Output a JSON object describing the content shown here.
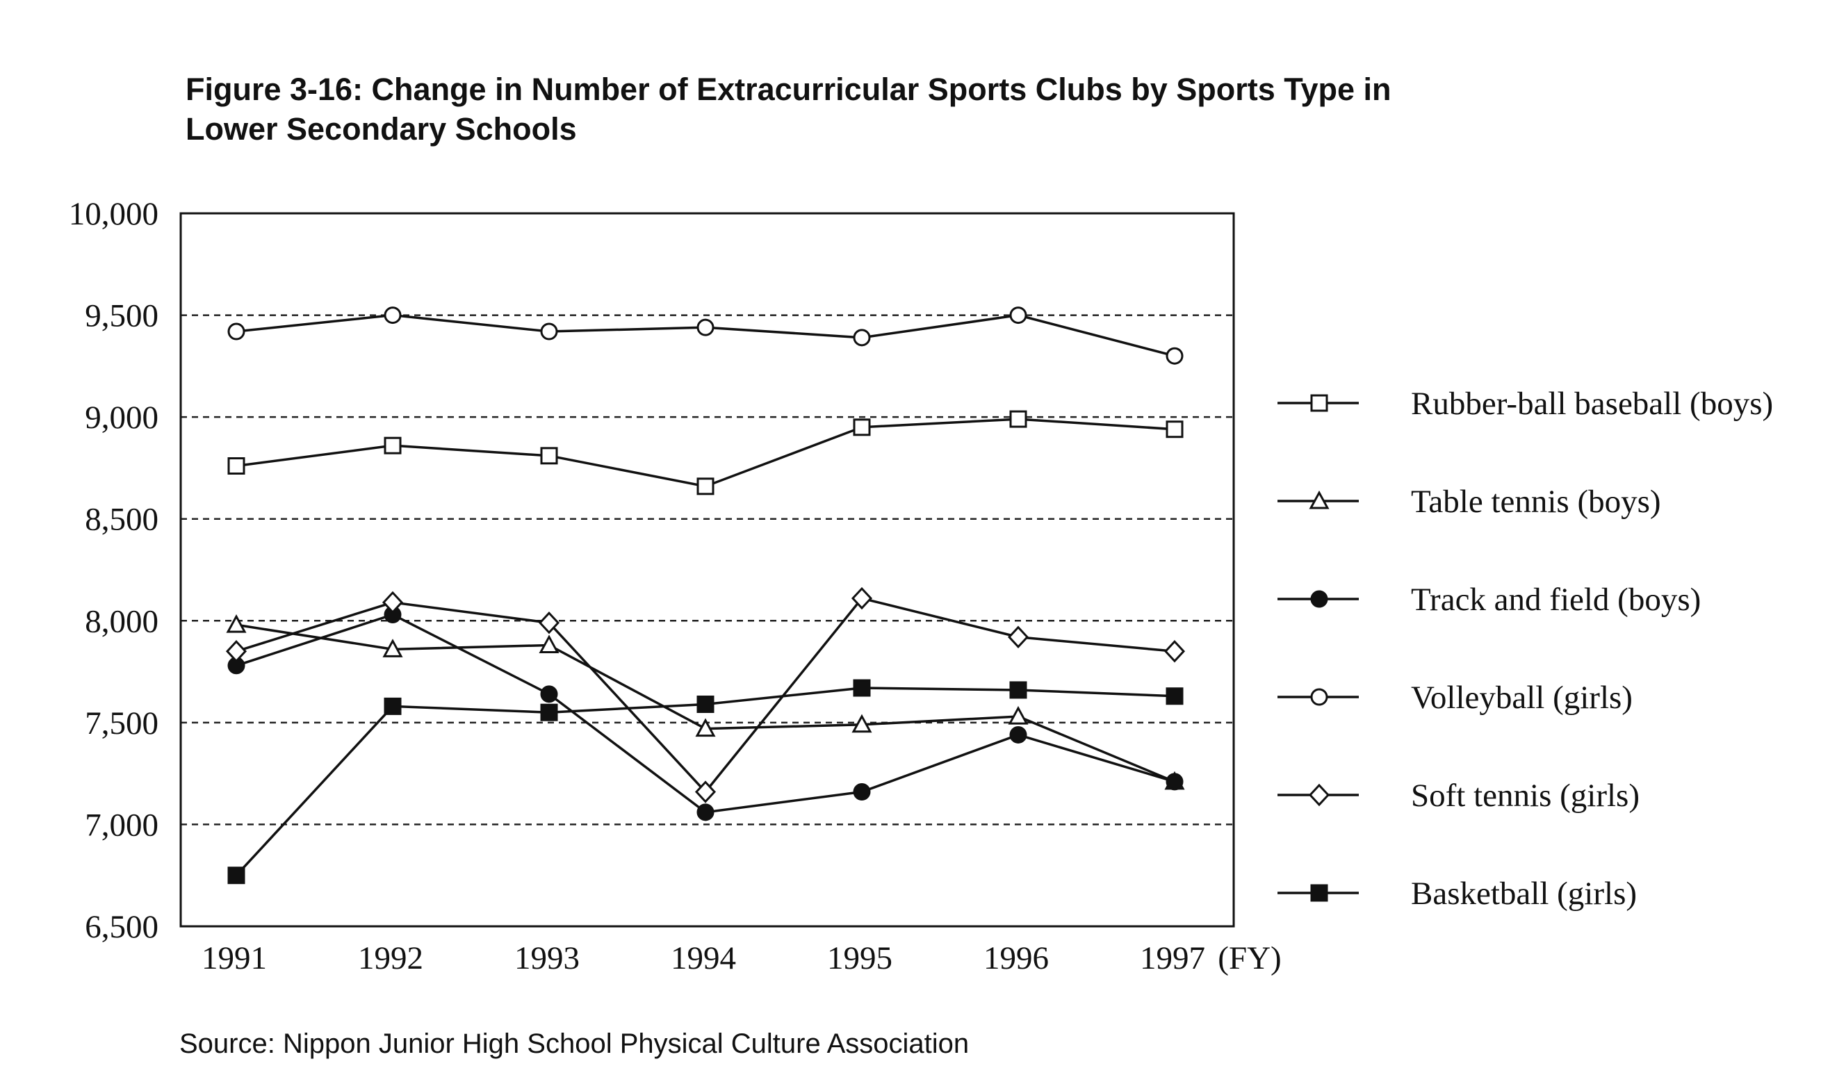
{
  "figure": {
    "title_line1": "Figure 3-16: Change in Number of Extracurricular Sports Clubs by Sports Type in",
    "title_line2": "Lower Secondary Schools",
    "source": "Source: Nippon Junior High School Physical Culture Association"
  },
  "chart_data": {
    "type": "line",
    "title": "Figure 3-16: Change in Number of Extracurricular Sports Clubs by Sports Type in Lower Secondary Schools",
    "xlabel": "(FY)",
    "ylabel": "",
    "x": [
      "1991",
      "1992",
      "1993",
      "1994",
      "1995",
      "1996",
      "1997"
    ],
    "ylim": [
      6500,
      10000
    ],
    "yticks": [
      6500,
      7000,
      7500,
      8000,
      8500,
      9000,
      9500,
      10000
    ],
    "ytick_labels": [
      "6,500",
      "7,000",
      "7,500",
      "8,000",
      "8,500",
      "9,000",
      "9,500",
      "10,000"
    ],
    "grid": "horizontal dashed at 7,000 / 7,500 / 8,000 / 8,500 / 9,000 / 9,500",
    "legend_position": "right",
    "series": [
      {
        "name": "Rubber-ball baseball (boys)",
        "marker": "open-square",
        "values": [
          8760,
          8860,
          8810,
          8660,
          8950,
          8990,
          8940
        ]
      },
      {
        "name": "Table tennis (boys)",
        "marker": "open-triangle",
        "values": [
          7980,
          7860,
          7880,
          7470,
          7490,
          7530,
          7210
        ]
      },
      {
        "name": "Track and field (boys)",
        "marker": "filled-circle",
        "values": [
          7780,
          8030,
          7640,
          7060,
          7160,
          7440,
          7210
        ]
      },
      {
        "name": "Volleyball (girls)",
        "marker": "open-circle",
        "values": [
          9420,
          9500,
          9420,
          9440,
          9390,
          9500,
          9300
        ]
      },
      {
        "name": "Soft tennis (girls)",
        "marker": "open-diamond",
        "values": [
          7850,
          8090,
          7990,
          7160,
          8110,
          7920,
          7850
        ]
      },
      {
        "name": "Basketball (girls)",
        "marker": "filled-square",
        "values": [
          6750,
          7580,
          7550,
          7590,
          7670,
          7660,
          7630
        ]
      }
    ]
  }
}
